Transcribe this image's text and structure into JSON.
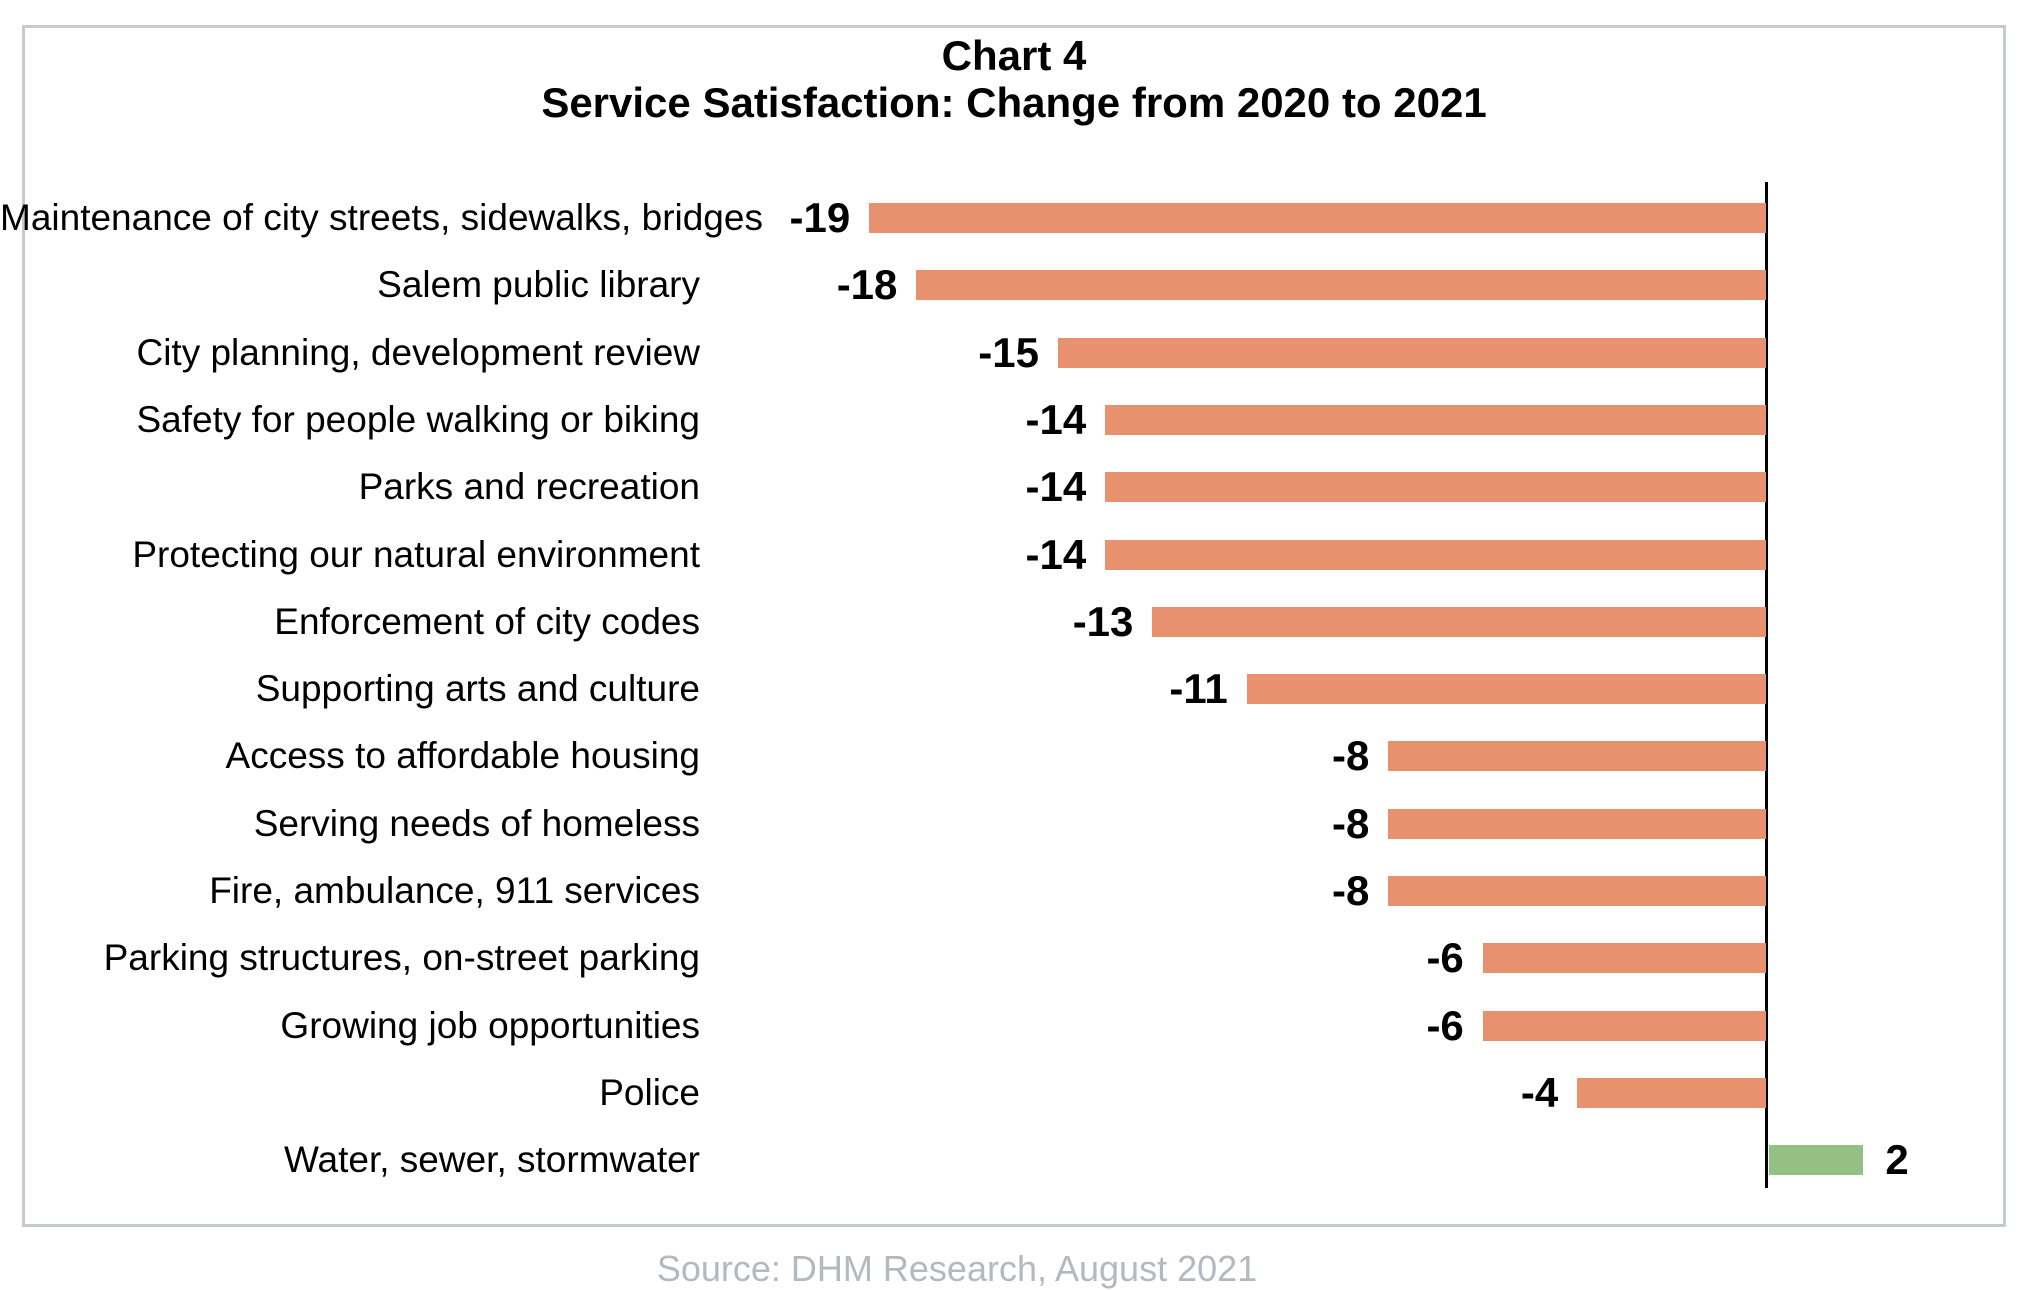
{
  "title": {
    "line1": "Chart 4",
    "line2": "Service Satisfaction: Change from 2020 to 2021"
  },
  "source": "Source: DHM Research, August 2021",
  "chart_data": {
    "type": "bar",
    "orientation": "horizontal",
    "title": "Chart 4 — Service Satisfaction: Change from 2020 to 2021",
    "categories": [
      "Maintenance of city streets, sidewalks, bridges",
      "Salem public library",
      "City planning, development review",
      "Safety for people walking or biking",
      "Parks and recreation",
      "Protecting our natural environment",
      "Enforcement of city codes",
      "Supporting arts and culture",
      "Access to affordable housing",
      "Serving needs of homeless",
      "Fire, ambulance, 911 services",
      "Parking structures, on-street parking",
      "Growing job opportunities",
      "Police",
      "Water, sewer, stormwater"
    ],
    "values": [
      -19,
      -18,
      -15,
      -14,
      -14,
      -14,
      -13,
      -11,
      -8,
      -8,
      -8,
      -6,
      -6,
      -4,
      2
    ],
    "value_labels": [
      "-19",
      "-18",
      "-15",
      "-14",
      "-14",
      "-14",
      "-13",
      "-11",
      "-8",
      "-8",
      "-8",
      "-6",
      "-6",
      "-4",
      "2"
    ],
    "xlim": [
      -19,
      5
    ],
    "grid": false,
    "legend": "none",
    "data_labels_position": "outside-end",
    "colors": {
      "negative_bar": "#e8916e",
      "positive_bar": "#95c084",
      "zero_axis": "#000000",
      "label_text": "#000000",
      "source_text": "#b2b9c0",
      "frame_border": "#c5cacf"
    }
  }
}
